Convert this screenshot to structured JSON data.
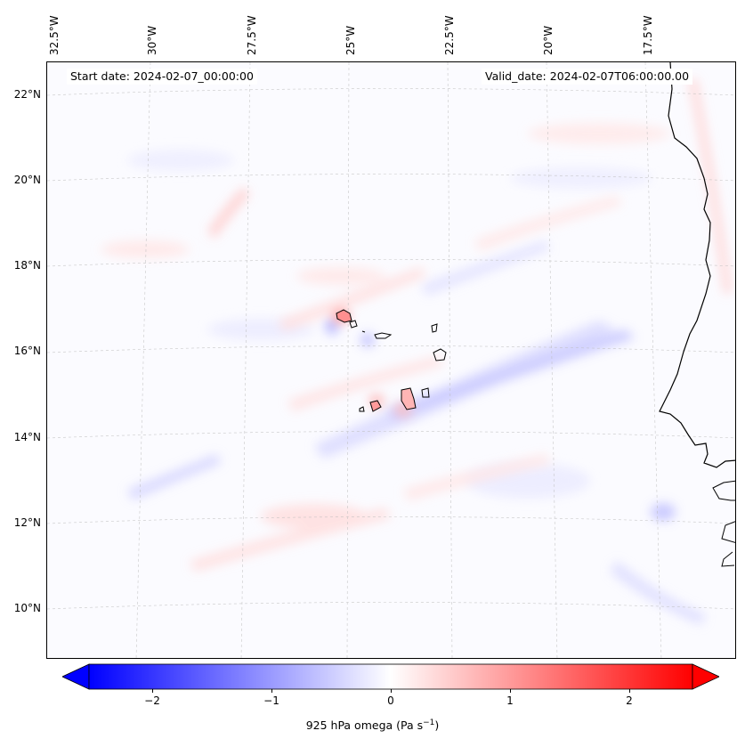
{
  "header": {
    "start_date": "Start date: 2024-02-07_00:00:00",
    "valid_date": "Valid_date: 2024-02-07T06:00:00.00"
  },
  "axes": {
    "lon_labels": [
      "32.5°W",
      "30°W",
      "27.5°W",
      "25°W",
      "22.5°W",
      "20°W",
      "17.5°W"
    ],
    "lat_labels": [
      "22°N",
      "20°N",
      "18°N",
      "16°N",
      "14°N",
      "12°N",
      "10°N"
    ]
  },
  "colorbar": {
    "label_main": "925 hPa omega (Pa s",
    "label_sup": "−1",
    "label_close": ")",
    "ticks": [
      "−2",
      "−1",
      "0",
      "1",
      "2"
    ],
    "range": [
      -2.6,
      2.6
    ],
    "colormap": "bwr",
    "low_color": "#0000ff",
    "mid_color": "#ffffff",
    "high_color": "#ff0000"
  }
}
